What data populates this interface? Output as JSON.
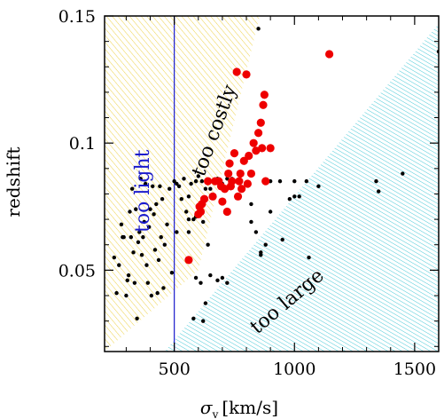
{
  "chart_data": {
    "type": "scatter",
    "title": "",
    "xlabel_symbol": "σ",
    "xlabel_subscript": "v",
    "xlabel_unit": "[km/s]",
    "ylabel": "redshift",
    "xlim": [
      210,
      1600
    ],
    "ylim": [
      0.018,
      0.15
    ],
    "x_ticks": [
      500,
      1000,
      1500
    ],
    "x_tick_labels": [
      "500",
      "1000",
      "1500"
    ],
    "y_ticks": [
      0.05,
      0.1,
      0.15
    ],
    "y_tick_labels": [
      "0.05",
      "0.1",
      "0.15"
    ],
    "grid": false,
    "colors": {
      "costly_hatch": "#e8c000",
      "large_hatch": "#00b4c8",
      "light_line": "#1a1acc",
      "light_text": "#1a1acc",
      "selected": "#ee0000",
      "other": "#000000"
    },
    "regions": {
      "too_light": {
        "label": "too light",
        "x_max": 500
      },
      "too_costly": {
        "label": "too costly",
        "boundary": [
          [
            210,
            0.018
          ],
          [
            600,
            0.05
          ],
          [
            855,
            0.15
          ]
        ]
      },
      "too_large": {
        "label": "too large",
        "boundary": [
          [
            460,
            0.018
          ],
          [
            1600,
            0.147
          ]
        ]
      }
    },
    "series": [
      {
        "marker": "large-dot",
        "color": "#ee0000",
        "x": [
          560,
          600,
          605,
          610,
          615,
          625,
          640,
          660,
          670,
          685,
          695,
          700,
          710,
          720,
          725,
          730,
          735,
          740,
          750,
          760,
          765,
          770,
          775,
          780,
          790,
          800,
          805,
          810,
          820,
          830,
          840,
          850,
          860,
          865,
          870,
          875,
          880,
          900,
          1145
        ],
        "y": [
          0.054,
          0.072,
          0.075,
          0.073,
          0.076,
          0.078,
          0.085,
          0.079,
          0.085,
          0.085,
          0.083,
          0.077,
          0.082,
          0.073,
          0.088,
          0.092,
          0.083,
          0.085,
          0.096,
          0.128,
          0.079,
          0.085,
          0.088,
          0.082,
          0.093,
          0.127,
          0.084,
          0.095,
          0.088,
          0.1,
          0.097,
          0.104,
          0.108,
          0.098,
          0.115,
          0.119,
          0.085,
          0.098,
          0.135
        ]
      },
      {
        "marker": "small-dot",
        "color": "#000000",
        "x": [
          250,
          260,
          270,
          280,
          285,
          290,
          300,
          305,
          310,
          315,
          320,
          325,
          330,
          335,
          340,
          345,
          350,
          355,
          360,
          365,
          370,
          375,
          380,
          385,
          390,
          395,
          400,
          405,
          410,
          415,
          420,
          425,
          430,
          435,
          440,
          445,
          450,
          455,
          460,
          470,
          480,
          490,
          500,
          510,
          520,
          530,
          540,
          550,
          560,
          570,
          580,
          590,
          600,
          615,
          630,
          650,
          680,
          700,
          720,
          740,
          770,
          800,
          820,
          850,
          880,
          900,
          940,
          980,
          1000,
          1050,
          1100,
          1340,
          1350,
          1450,
          1600,
          820,
          840,
          860,
          880,
          900,
          950,
          1000,
          1020,
          1060,
          590,
          610,
          630,
          650,
          720,
          560,
          580,
          620,
          680,
          700,
          560,
          510,
          590,
          620,
          640,
          860
        ],
        "y": [
          0.055,
          0.041,
          0.052,
          0.068,
          0.063,
          0.063,
          0.04,
          0.046,
          0.048,
          0.073,
          0.063,
          0.082,
          0.057,
          0.045,
          0.074,
          0.031,
          0.061,
          0.065,
          0.086,
          0.056,
          0.063,
          0.069,
          0.084,
          0.052,
          0.045,
          0.067,
          0.074,
          0.04,
          0.083,
          0.072,
          0.058,
          0.076,
          0.041,
          0.054,
          0.083,
          0.063,
          0.078,
          0.043,
          0.06,
          0.068,
          0.082,
          0.049,
          0.085,
          0.084,
          0.083,
          0.078,
          0.086,
          0.073,
          0.079,
          0.084,
          0.07,
          0.085,
          0.087,
          0.085,
          0.082,
          0.082,
          0.086,
          0.084,
          0.086,
          0.086,
          0.085,
          0.084,
          0.076,
          0.145,
          0.085,
          0.085,
          0.085,
          0.078,
          0.079,
          0.085,
          0.083,
          0.085,
          0.081,
          0.088,
          0.136,
          0.069,
          0.065,
          0.057,
          0.06,
          0.073,
          0.062,
          0.085,
          0.079,
          0.055,
          0.047,
          0.045,
          0.037,
          0.048,
          0.045,
          0.065,
          0.031,
          0.03,
          0.046,
          0.047,
          0.07,
          0.065,
          0.071,
          0.069,
          0.06,
          0.056
        ]
      }
    ]
  }
}
